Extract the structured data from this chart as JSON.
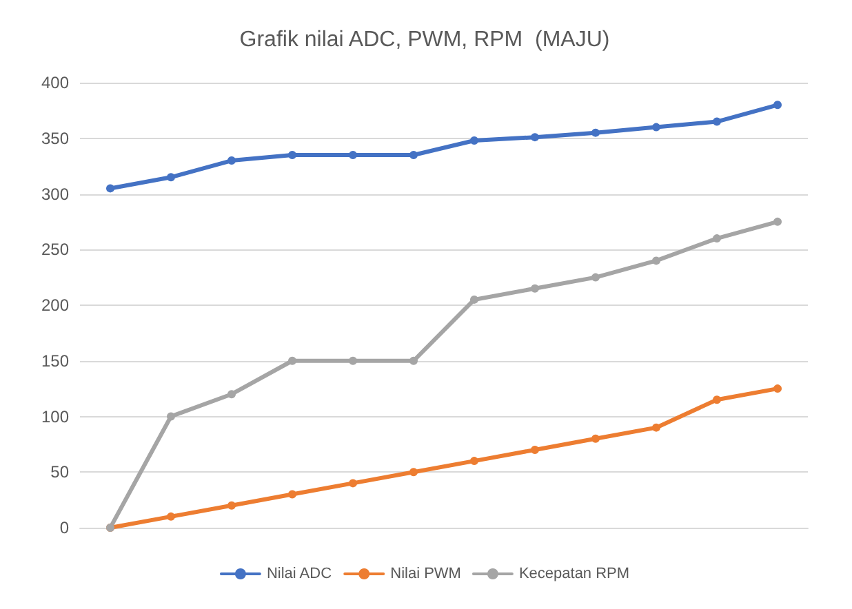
{
  "chart_data": {
    "type": "line",
    "title": "Grafik nilai ADC, PWM, RPM  (MAJU)",
    "categories": [
      null,
      null,
      null,
      null,
      null,
      null,
      null,
      null,
      null,
      null,
      null,
      null
    ],
    "series": [
      {
        "name": "Nilai ADC",
        "color": "#4472c4",
        "values": [
          305,
          315,
          330,
          335,
          335,
          335,
          348,
          351,
          355,
          360,
          365,
          380
        ]
      },
      {
        "name": "Nilai PWM",
        "color": "#ed7d31",
        "values": [
          0,
          10,
          20,
          30,
          40,
          50,
          60,
          70,
          80,
          90,
          115,
          125
        ]
      },
      {
        "name": "Kecepatan RPM",
        "color": "#a5a5a5",
        "values": [
          0,
          100,
          120,
          150,
          150,
          150,
          205,
          215,
          225,
          240,
          260,
          275
        ]
      }
    ],
    "ylim": [
      0,
      400
    ],
    "yticks": [
      0,
      50,
      100,
      150,
      200,
      250,
      300,
      350,
      400
    ],
    "grid": "y",
    "legend": "bottom",
    "marker": "circle",
    "line_style": "solid"
  }
}
